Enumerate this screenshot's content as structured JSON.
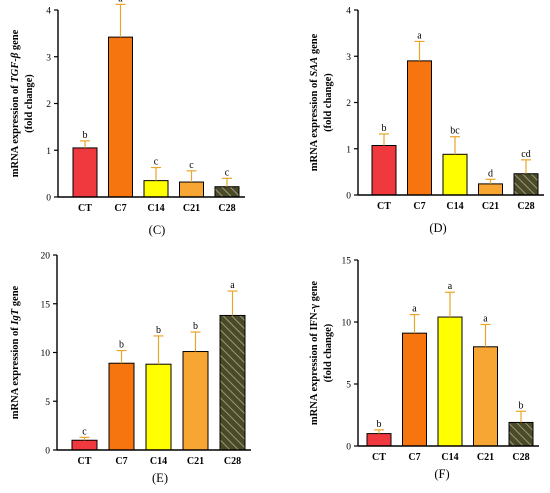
{
  "colors": {
    "CT": "#f0393f",
    "C7": "#f6750e",
    "C14": "#ffff00",
    "C21": "#f7a533",
    "C28": "#4a4a2a",
    "C28_hatch": "#9a9a70",
    "error_bar": "#e8a52a"
  },
  "chart_data": [
    {
      "type": "bar",
      "panel": "(C)",
      "ylabel_parts": [
        "mRNA expression of ",
        "TGF-β",
        " gene"
      ],
      "ylabel_line2": "(fold change)",
      "categories": [
        "CT",
        "C7",
        "C14",
        "C21",
        "C28"
      ],
      "values": [
        1.05,
        3.42,
        0.35,
        0.32,
        0.22
      ],
      "errors": [
        0.15,
        0.7,
        0.28,
        0.24,
        0.18
      ],
      "letters": [
        "b",
        "a",
        "c",
        "c",
        "c"
      ],
      "ylim": [
        0,
        4
      ],
      "yticks": [
        0,
        1,
        2,
        3,
        4
      ]
    },
    {
      "type": "bar",
      "panel": "(D)",
      "ylabel_parts": [
        "mRNA expression of ",
        "SAA",
        " gene"
      ],
      "ylabel_line2": "(fold change)",
      "categories": [
        "CT",
        "C7",
        "C14",
        "C21",
        "C28"
      ],
      "values": [
        1.07,
        2.9,
        0.88,
        0.24,
        0.46
      ],
      "errors": [
        0.25,
        0.42,
        0.38,
        0.1,
        0.3
      ],
      "letters": [
        "b",
        "a",
        "bc",
        "d",
        "cd"
      ],
      "ylim": [
        0,
        4
      ],
      "yticks": [
        0,
        1,
        2,
        3,
        4
      ]
    },
    {
      "type": "bar",
      "panel": "(E)",
      "ylabel_parts": [
        "mRNA expression of ",
        "IgT",
        " gene"
      ],
      "ylabel_line2": "",
      "categories": [
        "CT",
        "C7",
        "C14",
        "C21",
        "C28"
      ],
      "values": [
        1.0,
        8.9,
        8.8,
        10.1,
        13.8
      ],
      "errors": [
        0.3,
        1.3,
        2.9,
        2.0,
        2.5
      ],
      "letters": [
        "c",
        "b",
        "b",
        "b",
        "a"
      ],
      "ylim": [
        0,
        20
      ],
      "yticks": [
        0,
        5,
        10,
        15,
        20
      ]
    },
    {
      "type": "bar",
      "panel": "(F)",
      "ylabel_parts": [
        "mRNA expression of IFN-γ gene"
      ],
      "ylabel_line2": "(fold change)",
      "categories": [
        "CT",
        "C7",
        "C14",
        "C21",
        "C28"
      ],
      "values": [
        1.0,
        9.1,
        10.4,
        8.0,
        1.9
      ],
      "errors": [
        0.3,
        1.5,
        2.0,
        1.8,
        0.9
      ],
      "letters": [
        "b",
        "a",
        "a",
        "a",
        "b"
      ],
      "ylim": [
        0,
        15
      ],
      "yticks": [
        0,
        5,
        10,
        15
      ]
    }
  ]
}
